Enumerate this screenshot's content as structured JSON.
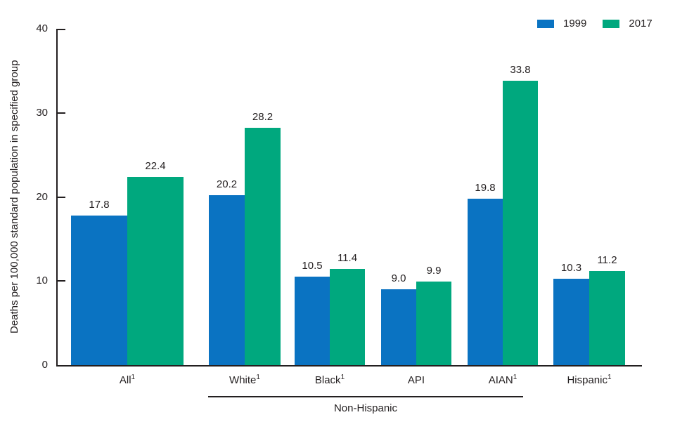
{
  "chart_data": {
    "type": "bar",
    "title": "",
    "xlabel": "",
    "ylabel": "Deaths per 100,000 standard population in specified group",
    "ylim": [
      0,
      40
    ],
    "yticks": [
      0,
      10,
      20,
      30,
      40
    ],
    "grid": false,
    "legend_position": "top-right",
    "categories": [
      "All",
      "White",
      "Black",
      "API",
      "AIAN",
      "Hispanic"
    ],
    "category_superscripts": [
      "1",
      "1",
      "1",
      "",
      "1",
      "1"
    ],
    "series": [
      {
        "name": "1999",
        "color": "#0A73C2",
        "values": [
          17.8,
          20.2,
          10.5,
          9.0,
          19.8,
          10.3
        ]
      },
      {
        "name": "2017",
        "color": "#00A87E",
        "values": [
          22.4,
          28.2,
          11.4,
          9.9,
          33.8,
          11.2
        ]
      }
    ],
    "group_annotation": {
      "label": "Non-Hispanic",
      "applies_to": [
        "White",
        "Black",
        "API",
        "AIAN"
      ]
    },
    "text_color": "#231F20",
    "axis_color": "#231F20"
  }
}
